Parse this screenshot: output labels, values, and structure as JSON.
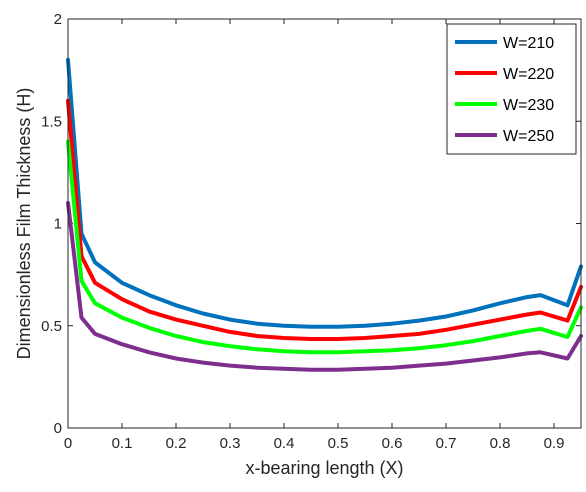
{
  "chart_data": {
    "type": "line",
    "xlabel": "x-bearing length (X)",
    "ylabel": "Dimensionless Film Thickness (H)",
    "xlim": [
      0,
      0.95
    ],
    "ylim": [
      0,
      2
    ],
    "xticks": [
      "0",
      "0.1",
      "0.2",
      "0.3",
      "0.4",
      "0.5",
      "0.6",
      "0.7",
      "0.8",
      "0.9"
    ],
    "yticks": [
      "0",
      "0.5",
      "1",
      "1.5",
      "2"
    ],
    "grid": false,
    "legend_position": "top-right",
    "series": [
      {
        "name": "W=210",
        "color": "#0072BD",
        "x": [
          0,
          0.025,
          0.05,
          0.1,
          0.15,
          0.2,
          0.25,
          0.3,
          0.35,
          0.4,
          0.45,
          0.5,
          0.55,
          0.6,
          0.65,
          0.7,
          0.75,
          0.8,
          0.85,
          0.875,
          0.925,
          0.95
        ],
        "y": [
          1.8,
          0.95,
          0.81,
          0.71,
          0.65,
          0.6,
          0.56,
          0.53,
          0.51,
          0.5,
          0.495,
          0.495,
          0.5,
          0.51,
          0.525,
          0.545,
          0.575,
          0.61,
          0.64,
          0.65,
          0.6,
          0.79
        ]
      },
      {
        "name": "W=220",
        "color": "#FF0000",
        "x": [
          0,
          0.025,
          0.05,
          0.1,
          0.15,
          0.2,
          0.25,
          0.3,
          0.35,
          0.4,
          0.45,
          0.5,
          0.55,
          0.6,
          0.65,
          0.7,
          0.75,
          0.8,
          0.85,
          0.875,
          0.925,
          0.95
        ],
        "y": [
          1.6,
          0.84,
          0.71,
          0.63,
          0.57,
          0.53,
          0.5,
          0.47,
          0.45,
          0.44,
          0.435,
          0.435,
          0.44,
          0.45,
          0.46,
          0.48,
          0.505,
          0.53,
          0.555,
          0.565,
          0.525,
          0.69
        ]
      },
      {
        "name": "W=230",
        "color": "#00FF00",
        "x": [
          0,
          0.025,
          0.05,
          0.1,
          0.15,
          0.2,
          0.25,
          0.3,
          0.35,
          0.4,
          0.45,
          0.5,
          0.55,
          0.6,
          0.65,
          0.7,
          0.75,
          0.8,
          0.85,
          0.875,
          0.925,
          0.95
        ],
        "y": [
          1.4,
          0.72,
          0.61,
          0.54,
          0.49,
          0.45,
          0.42,
          0.4,
          0.385,
          0.375,
          0.37,
          0.37,
          0.375,
          0.38,
          0.39,
          0.405,
          0.425,
          0.45,
          0.475,
          0.485,
          0.445,
          0.59
        ]
      },
      {
        "name": "W=250",
        "color": "#7E2F8E",
        "x": [
          0,
          0.025,
          0.05,
          0.1,
          0.15,
          0.2,
          0.25,
          0.3,
          0.35,
          0.4,
          0.45,
          0.5,
          0.55,
          0.6,
          0.65,
          0.7,
          0.75,
          0.8,
          0.85,
          0.875,
          0.925,
          0.95
        ],
        "y": [
          1.1,
          0.54,
          0.46,
          0.41,
          0.37,
          0.34,
          0.32,
          0.305,
          0.295,
          0.29,
          0.285,
          0.285,
          0.29,
          0.295,
          0.305,
          0.315,
          0.33,
          0.345,
          0.365,
          0.37,
          0.34,
          0.45
        ]
      }
    ]
  }
}
